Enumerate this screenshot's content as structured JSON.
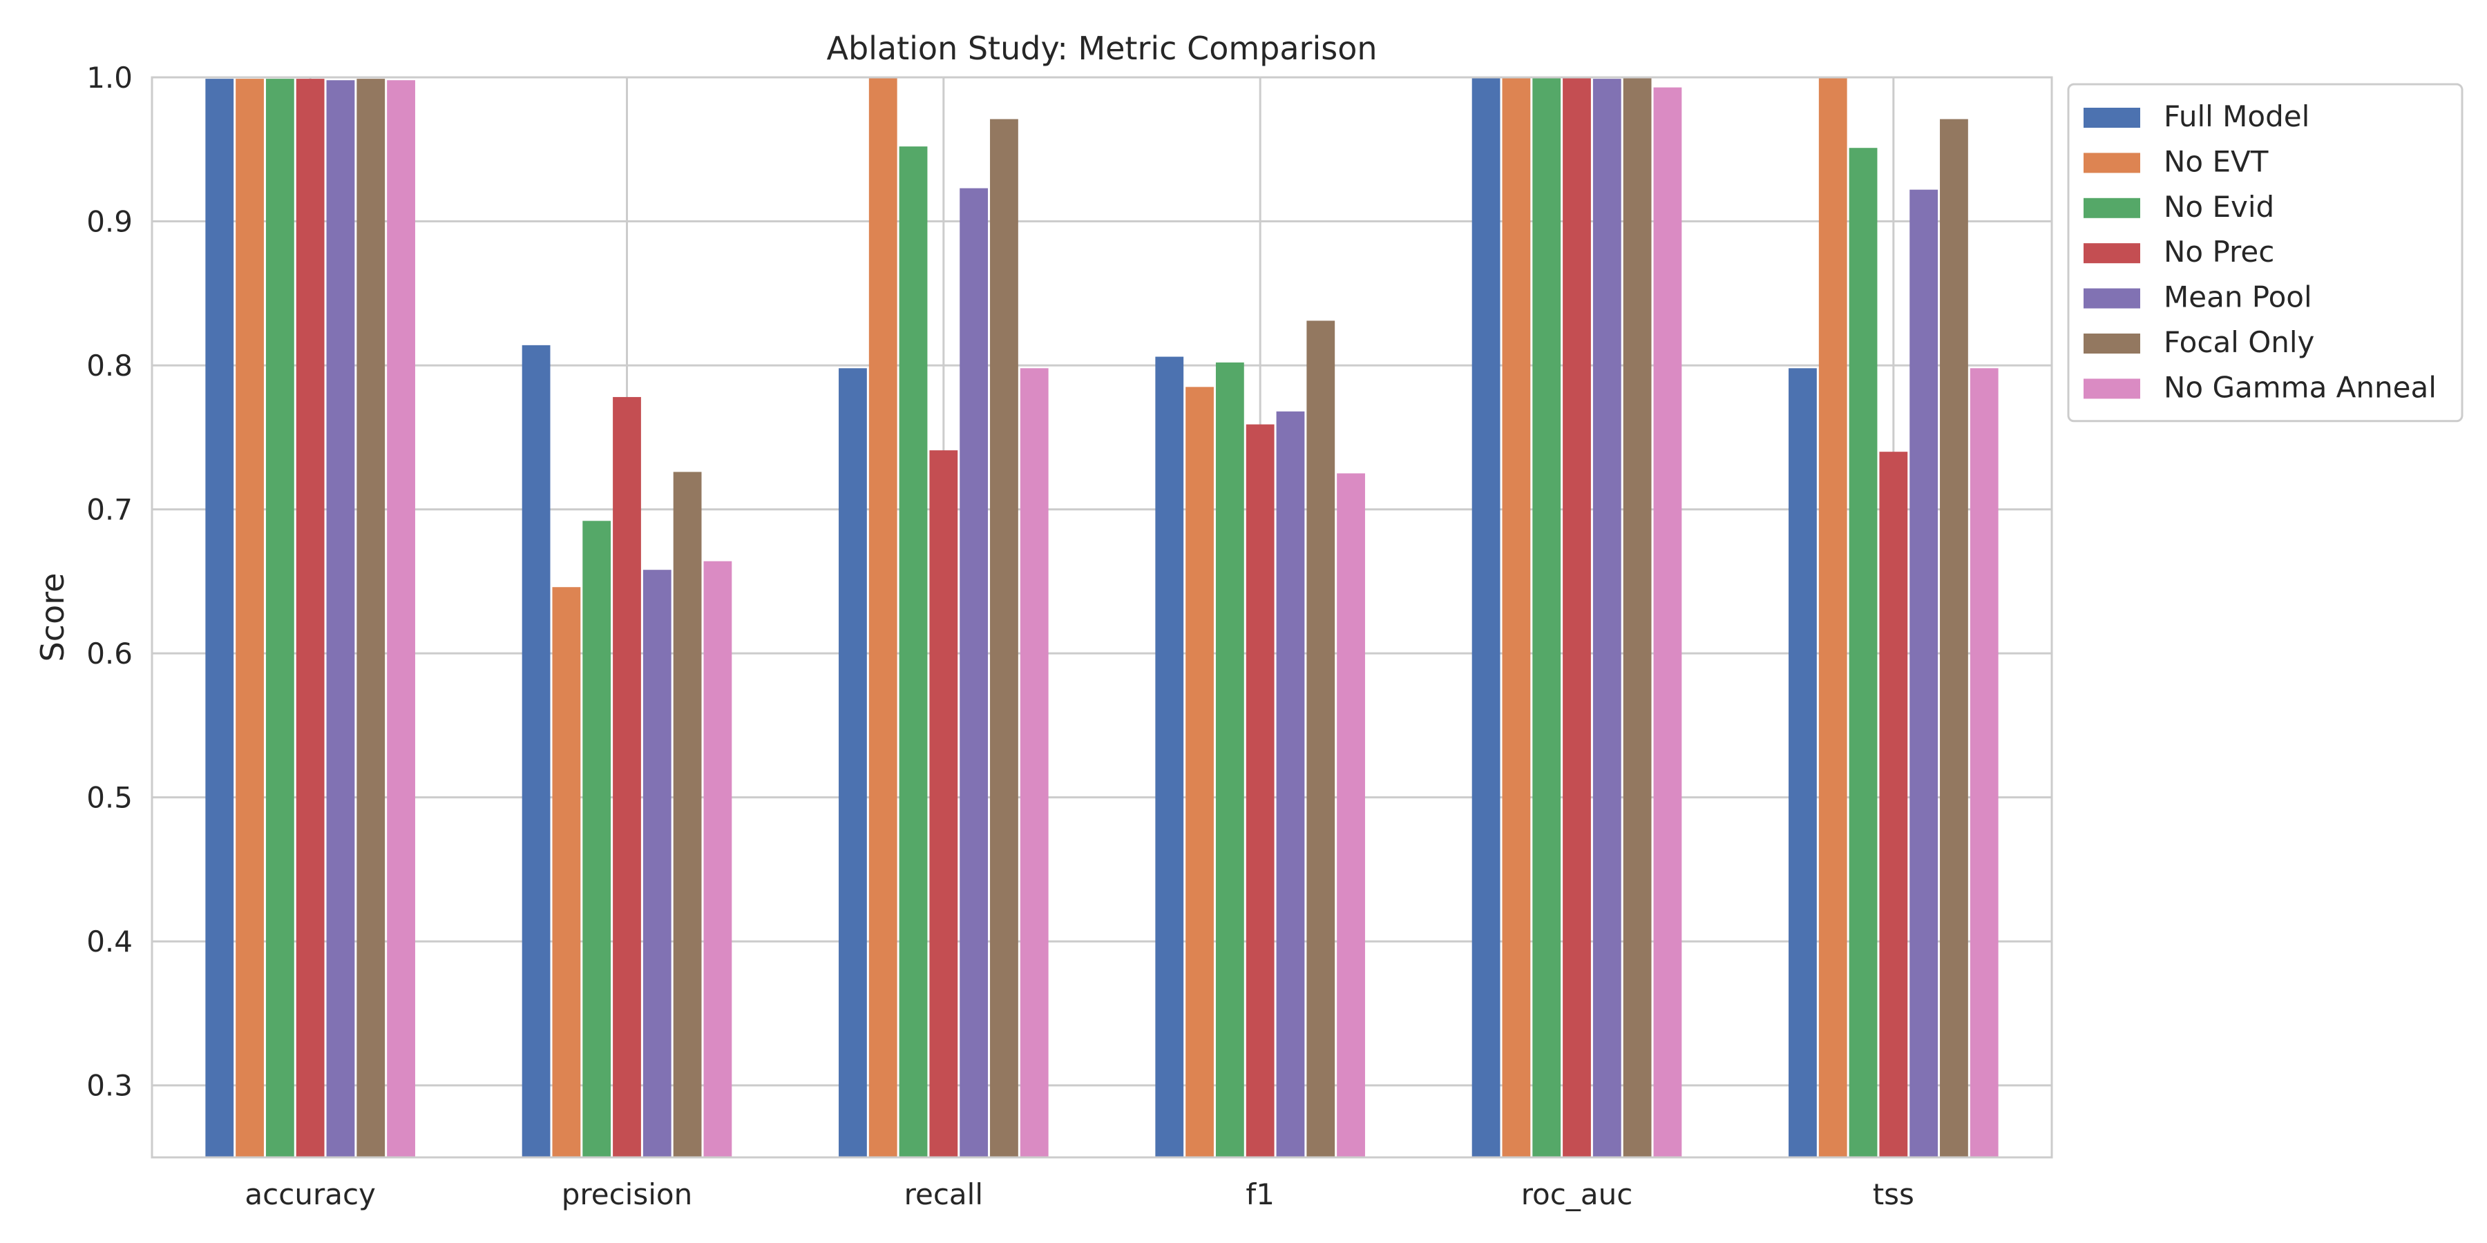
{
  "chart_data": {
    "type": "bar",
    "title": "Ablation Study: Metric Comparison",
    "xlabel": "",
    "ylabel": "Score",
    "ylim": [
      0.25,
      1.0
    ],
    "yticks": [
      0.3,
      0.4,
      0.5,
      0.6,
      0.7,
      0.8,
      0.9,
      1.0
    ],
    "grid": true,
    "legend_placement": "outside-top-right",
    "categories": [
      "accuracy",
      "precision",
      "recall",
      "f1",
      "roc_auc",
      "tss"
    ],
    "series": [
      {
        "name": "Full Model",
        "color": "#4c72b0",
        "values": [
          0.999,
          0.814,
          0.798,
          0.806,
          1.0,
          0.798
        ]
      },
      {
        "name": "No EVT",
        "color": "#dd8452",
        "values": [
          0.999,
          0.646,
          1.0,
          0.785,
          1.0,
          1.0
        ]
      },
      {
        "name": "No Evid",
        "color": "#55a868",
        "values": [
          0.999,
          0.692,
          0.952,
          0.802,
          1.0,
          0.951
        ]
      },
      {
        "name": "No Prec",
        "color": "#c44e52",
        "values": [
          0.999,
          0.778,
          0.741,
          0.759,
          1.0,
          0.74
        ]
      },
      {
        "name": "Mean Pool",
        "color": "#8172b3",
        "values": [
          0.998,
          0.658,
          0.923,
          0.768,
          0.999,
          0.922
        ]
      },
      {
        "name": "Focal Only",
        "color": "#937860",
        "values": [
          0.999,
          0.726,
          0.971,
          0.831,
          1.0,
          0.971
        ]
      },
      {
        "name": "No Gamma Anneal",
        "color": "#da8bc3",
        "values": [
          0.998,
          0.664,
          0.798,
          0.725,
          0.993,
          0.798
        ]
      }
    ]
  }
}
